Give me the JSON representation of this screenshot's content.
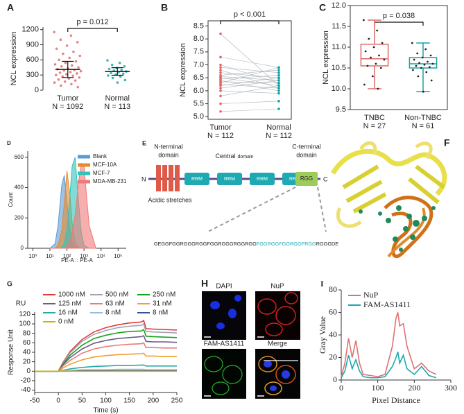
{
  "chart_data": [
    {
      "type": "dotplot",
      "label": "A",
      "ylabel": "NCL expression",
      "annotation": "p = 0.012",
      "categories": [
        "Tumor",
        "Normal"
      ],
      "n_labels": [
        "N = 1092",
        "N = 113"
      ],
      "colors": [
        "#e06666",
        "#17a3a3"
      ],
      "values": [
        [
          1150,
          1080,
          1000,
          950,
          880,
          820,
          760,
          720,
          680,
          640,
          600,
          570,
          540,
          510,
          490,
          470,
          450,
          430,
          415,
          400,
          390,
          375,
          360,
          345,
          330,
          315,
          300,
          285,
          270,
          250,
          230,
          210,
          190,
          170,
          150,
          120,
          90,
          60
        ],
        [
          590,
          540,
          500,
          470,
          440,
          420,
          400,
          385,
          370,
          355,
          340,
          325,
          310,
          290,
          270,
          240,
          200,
          150
        ]
      ],
      "means": [
        410,
        370
      ],
      "sds": [
        160,
        75
      ],
      "ylim": [
        0,
        1250
      ],
      "yticks": [
        0,
        300,
        600,
        900,
        1200
      ]
    },
    {
      "type": "paired",
      "label": "B",
      "ylabel": "NCL expression",
      "annotation": "p < 0.001",
      "categories": [
        "Tumor",
        "Normal"
      ],
      "n_labels": [
        "N = 112",
        "N = 112"
      ],
      "colors": [
        "#e06666",
        "#17a3a3"
      ],
      "frame": true,
      "values": [
        [
          8.2,
          7.3,
          7.0,
          6.9,
          6.8,
          6.7,
          6.6,
          6.55,
          6.5,
          6.45,
          6.4,
          6.35,
          6.3,
          6.25,
          6.2,
          6.1,
          6.0,
          5.8,
          5.5,
          5.2
        ],
        [
          6.2,
          6.9,
          6.3,
          6.7,
          6.1,
          6.5,
          6.8,
          6.4,
          6.2,
          6.6,
          6.0,
          6.3,
          6.9,
          6.1,
          6.5,
          6.4,
          5.9,
          6.2,
          5.6,
          5.3
        ]
      ],
      "ylim": [
        4.9,
        8.7
      ],
      "yticks": [
        {
          "value": 5,
          "label": "5.0"
        },
        5.5,
        {
          "value": 6,
          "label": "6.0"
        },
        6.5,
        {
          "value": 7,
          "label": "7.0"
        },
        7.5,
        {
          "value": 8,
          "label": "8.0"
        },
        8.5
      ]
    },
    {
      "type": "box",
      "label": "C",
      "ylabel": "NCL expression",
      "annotation": "p = 0.038",
      "categories": [
        "TNBC",
        "Non-TNBC"
      ],
      "n_labels": [
        "N = 27",
        "N = 61"
      ],
      "colors": [
        "#e06666",
        "#17a3a3"
      ],
      "frame": true,
      "boxes": [
        {
          "min": 10.0,
          "q1": 10.55,
          "median": 10.72,
          "q3": 11.07,
          "max": 11.65
        },
        {
          "min": 9.93,
          "q1": 10.5,
          "median": 10.6,
          "q3": 10.75,
          "max": 11.1
        }
      ],
      "values": [
        [
          11.65,
          11.4,
          11.2,
          11.1,
          11.0,
          10.9,
          10.8,
          10.75,
          10.7,
          10.6,
          10.55,
          10.5,
          10.3,
          10.1,
          10.0
        ],
        [
          11.1,
          10.95,
          10.85,
          10.8,
          10.75,
          10.7,
          10.65,
          10.62,
          10.6,
          10.58,
          10.55,
          10.52,
          10.5,
          10.45,
          10.4,
          10.3,
          10.2,
          9.93
        ]
      ],
      "ylim": [
        9.5,
        12.0
      ],
      "yticks": [
        9.5,
        {
          "value": 10,
          "label": "10.0"
        },
        10.5,
        {
          "value": 11,
          "label": "11.0"
        },
        11.5,
        {
          "value": 12,
          "label": "12.0"
        }
      ]
    },
    {
      "type": "area",
      "label": "D",
      "ylabel": "Count",
      "xlabel": "PE-A :: PE-A",
      "xscale": "log",
      "legend": "upper right",
      "x": [
        10,
        20,
        30,
        50,
        70,
        100,
        150,
        200,
        300,
        500,
        700,
        1000,
        2000,
        5000
      ],
      "series": [
        {
          "name": "Blank",
          "color": "#5b9bd5",
          "values": [
            0,
            30,
            150,
            420,
            480,
            300,
            120,
            40,
            10,
            0,
            0,
            0,
            0,
            0
          ]
        },
        {
          "name": "MCF-10A",
          "color": "#e8892f",
          "values": [
            0,
            0,
            20,
            120,
            300,
            510,
            350,
            170,
            40,
            5,
            0,
            0,
            0,
            0
          ]
        },
        {
          "name": "MCF-7",
          "color": "#2ec4b6",
          "values": [
            0,
            0,
            0,
            5,
            30,
            120,
            350,
            540,
            600,
            280,
            100,
            20,
            0,
            0
          ]
        },
        {
          "name": "MDA-MB-231",
          "color": "#f07878",
          "values": [
            0,
            0,
            0,
            0,
            0,
            10,
            40,
            100,
            220,
            450,
            560,
            540,
            150,
            0
          ]
        }
      ],
      "xlim": [
        0.5,
        300000
      ],
      "xticks": [
        {
          "value": 1,
          "label": "10⁰"
        },
        {
          "value": 10,
          "label": "10¹"
        },
        {
          "value": 100,
          "label": "10²"
        },
        {
          "value": 1000,
          "label": "10³"
        },
        {
          "value": 10000,
          "label": "10⁴"
        },
        {
          "value": 100000,
          "label": "10⁵"
        }
      ],
      "ylim": [
        0,
        640
      ],
      "yticks": [
        0,
        200,
        400,
        600
      ]
    },
    {
      "type": "line",
      "label": "G",
      "ylabel": "Response Unit",
      "xlabel": "Time (s)",
      "unit_label": "RU",
      "legend": "top",
      "x": [
        -50,
        0,
        10,
        25,
        50,
        75,
        100,
        125,
        150,
        175,
        180,
        185,
        200,
        225,
        250
      ],
      "series": [
        {
          "name": "1000 nM",
          "color": "#e03a3a",
          "values": [
            0,
            0,
            19,
            42,
            67,
            83,
            92,
            98,
            102,
            104,
            107,
            90,
            89,
            88,
            87
          ]
        },
        {
          "name": "500 nM",
          "color": "#a3a3b5",
          "values": [
            0,
            0,
            18,
            39,
            63,
            78,
            86,
            92,
            95,
            97,
            100,
            84,
            83,
            82,
            81
          ]
        },
        {
          "name": "250 nM",
          "color": "#1aa11a",
          "values": [
            0,
            0,
            16,
            34,
            55,
            69,
            76,
            81,
            84,
            85,
            88,
            74,
            73,
            72,
            71
          ]
        },
        {
          "name": "125 nM",
          "color": "#6a5a8a",
          "values": [
            0,
            0,
            14,
            29,
            47,
            59,
            65,
            69,
            71,
            73,
            75,
            63,
            62,
            62,
            61
          ]
        },
        {
          "name": "63 nM",
          "color": "#e77b7b",
          "values": [
            0,
            0,
            11,
            23,
            38,
            47,
            52,
            55,
            57,
            58,
            60,
            50,
            50,
            49,
            49
          ]
        },
        {
          "name": "31 nM",
          "color": "#f0a030",
          "values": [
            0,
            0,
            7,
            15,
            24,
            30,
            33,
            35,
            36,
            37,
            38,
            32,
            32,
            31,
            31
          ]
        },
        {
          "name": "16 nM",
          "color": "#2aa7a7",
          "values": [
            0,
            0,
            2,
            5,
            8,
            10,
            11,
            12,
            12,
            13,
            13,
            11,
            11,
            11,
            11
          ]
        },
        {
          "name": "8 nM",
          "color": "#9ab8e0",
          "values": [
            0,
            0,
            1,
            2,
            3,
            3,
            3,
            4,
            4,
            4,
            4,
            3,
            3,
            3,
            3
          ]
        },
        {
          "name": "8 nM",
          "color": "#3050a0",
          "values": [
            0,
            0,
            0,
            0,
            1,
            1,
            1,
            1,
            1,
            1,
            1,
            1,
            1,
            1,
            1
          ]
        },
        {
          "name": "0 nM",
          "color": "#c8b400",
          "values": [
            0,
            0,
            0,
            0,
            0,
            0,
            0,
            0,
            0,
            0,
            0,
            0,
            0,
            0,
            0
          ]
        }
      ],
      "xlim": [
        -50,
        250
      ],
      "xticks": [
        -50,
        0,
        50,
        100,
        150,
        200,
        250
      ],
      "ylim": [
        -45,
        125
      ],
      "yticks": [
        -40,
        -20,
        0,
        20,
        40,
        60,
        80,
        100,
        120
      ]
    },
    {
      "type": "line",
      "label": "I",
      "ylabel": "Gray Value",
      "xlabel": "Pixel Distance",
      "legend": "upper left",
      "x": [
        0,
        10,
        20,
        30,
        40,
        50,
        60,
        80,
        100,
        120,
        140,
        150,
        155,
        160,
        170,
        180,
        200,
        220,
        240,
        260
      ],
      "series": [
        {
          "name": "NuP",
          "color": "#e07070",
          "values": [
            3,
            15,
            37,
            20,
            35,
            15,
            5,
            4,
            3,
            5,
            30,
            55,
            60,
            48,
            50,
            30,
            10,
            15,
            8,
            5
          ]
        },
        {
          "name": "FAM-AS1411",
          "color": "#1aa8b0",
          "values": [
            2,
            8,
            22,
            10,
            18,
            8,
            3,
            2,
            2,
            3,
            12,
            20,
            25,
            15,
            22,
            10,
            5,
            12,
            4,
            2
          ]
        }
      ],
      "xlim": [
        0,
        300
      ],
      "xticks": [
        0,
        100,
        200,
        300
      ],
      "ylim": [
        0,
        80
      ],
      "yticks": [
        0,
        20,
        40,
        60,
        80
      ]
    }
  ],
  "panel_E": {
    "label": "E",
    "n_terminal": [
      "N-terminal",
      "domain"
    ],
    "central": "Central",
    "central_suffix": "domain",
    "c_terminal": [
      "C-terminal",
      "domain"
    ],
    "n_end": "N",
    "c_end": "C",
    "rrm": [
      "RRM",
      "RRM",
      "RRM",
      "RRM"
    ],
    "rgg": "RGG",
    "acidic": "Acidic stretches",
    "sequence": [
      "GEGGFGGRGGGRGGFGGRGGGRGGRGG",
      "FGGRGGFGGRGGFRGG",
      "RGGGDE"
    ]
  },
  "panel_F": {
    "label": "F"
  },
  "panel_H": {
    "label": "H",
    "titles": [
      "DAPI",
      "NuP",
      "FAM-AS1411",
      "Merge"
    ]
  }
}
